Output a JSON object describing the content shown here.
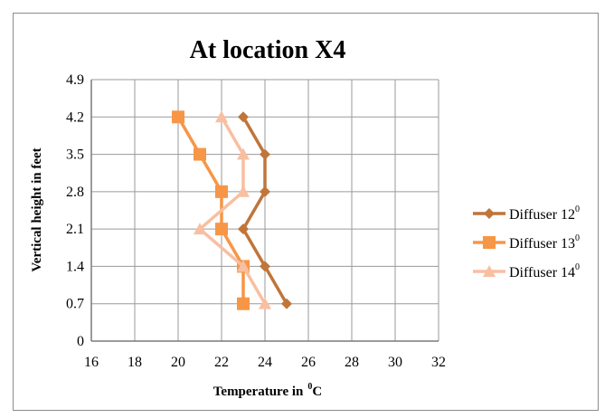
{
  "chart_data": {
    "type": "line",
    "title": "At location X4",
    "xlabel": "Temperature in",
    "xlabel_unit": "C",
    "xlabel_unit_sup": "0",
    "ylabel": "Vertical height in feet",
    "xlim": [
      16,
      32
    ],
    "ylim": [
      0,
      4.9
    ],
    "x_ticks": [
      "16",
      "18",
      "20",
      "22",
      "24",
      "26",
      "28",
      "30",
      "32"
    ],
    "y_ticks": [
      "0",
      "0.7",
      "1.4",
      "2.1",
      "2.8",
      "3.5",
      "4.2",
      "4.9"
    ],
    "grid": true,
    "legend_position": "right",
    "series": [
      {
        "name": "Diffuser 12",
        "name_sup": "0",
        "marker": "diamond",
        "color": "#c0753a",
        "points": [
          [
            25,
            0.7
          ],
          [
            24,
            1.4
          ],
          [
            23,
            2.1
          ],
          [
            24,
            2.8
          ],
          [
            24,
            3.5
          ],
          [
            23,
            4.2
          ]
        ]
      },
      {
        "name": "Diffuser 13",
        "name_sup": "0",
        "marker": "square",
        "color": "#f79646",
        "points": [
          [
            23,
            0.7
          ],
          [
            23,
            1.4
          ],
          [
            22,
            2.1
          ],
          [
            22,
            2.8
          ],
          [
            21,
            3.5
          ],
          [
            20,
            4.2
          ]
        ]
      },
      {
        "name": "Diffuser 14",
        "name_sup": "0",
        "marker": "triangle",
        "color": "#f8bfa0",
        "points": [
          [
            24,
            0.7
          ],
          [
            23,
            1.4
          ],
          [
            21,
            2.1
          ],
          [
            23,
            2.8
          ],
          [
            23,
            3.5
          ],
          [
            22,
            4.2
          ]
        ]
      }
    ]
  }
}
